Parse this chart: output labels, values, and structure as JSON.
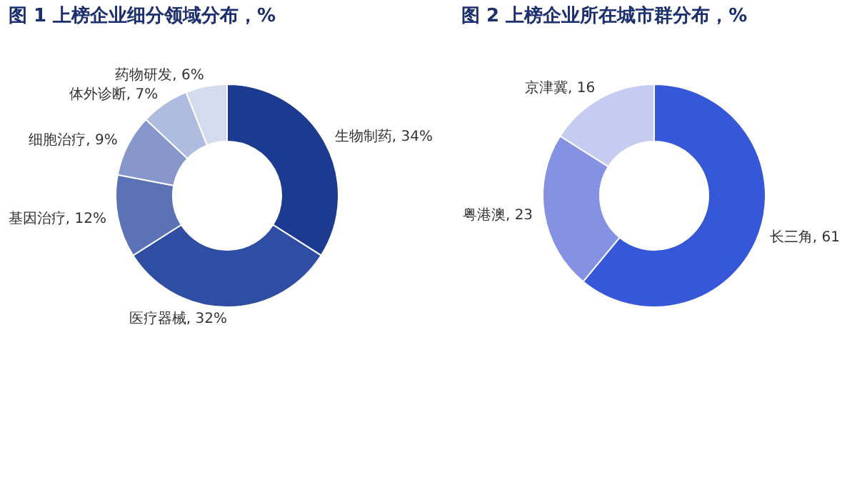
{
  "chart_data": [
    {
      "type": "donut",
      "title": "图 1 上榜企业细分领域分布，%",
      "categories": [
        "生物制药",
        "医疗器械",
        "基因治疗",
        "细胞治疗",
        "体外诊断",
        "药物研发"
      ],
      "values": [
        34,
        32,
        12,
        9,
        7,
        6
      ],
      "colors": [
        "#1c3a8f",
        "#2f4ea3",
        "#5b73b6",
        "#8797cb",
        "#b0bcdf",
        "#d5dbee"
      ],
      "value_labels": [
        "34%",
        "32%",
        "12%",
        "9%",
        "7%",
        "6%"
      ],
      "legend": false
    },
    {
      "type": "donut",
      "title": "图 2 上榜企业所在城市群分布，%",
      "categories": [
        "长三角",
        "粤港澳",
        "京津冀"
      ],
      "values": [
        61,
        23,
        16
      ],
      "colors": [
        "#3557d8",
        "#8592e3",
        "#c6cbf1"
      ],
      "value_labels": [
        "61",
        "23",
        "16"
      ],
      "legend": false
    }
  ]
}
